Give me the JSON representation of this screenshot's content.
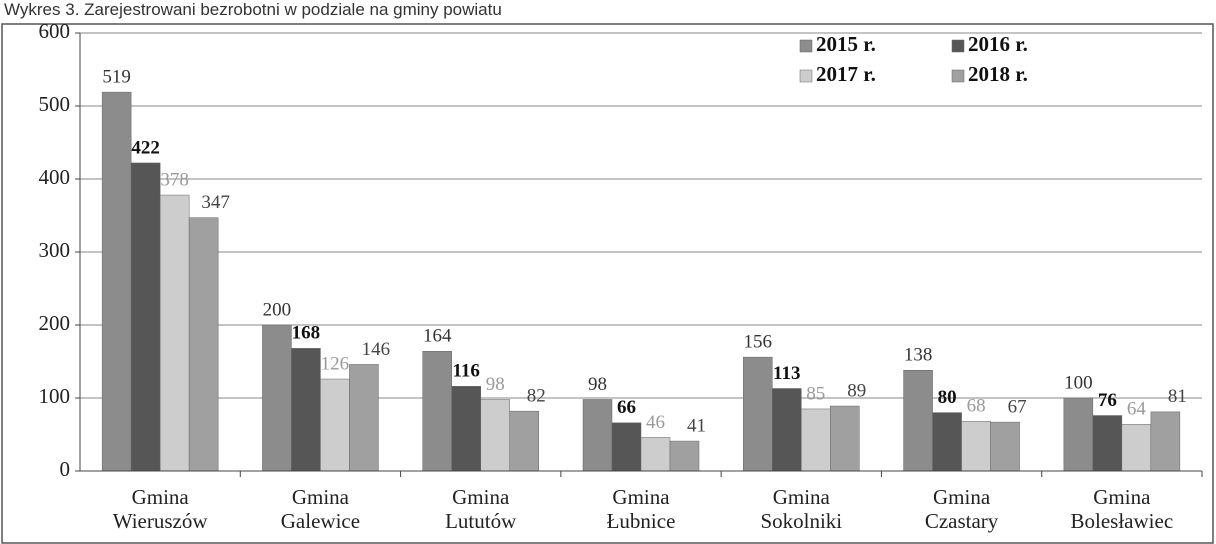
{
  "chart_data": {
    "type": "bar",
    "title": "Wykres 3. Zarejestrowani bezrobotni w podziale na gminy powiatu",
    "categories": [
      "Gmina\nWieruszów",
      "Gmina\nGalewice",
      "Gmina\nLututów",
      "Gmina\nŁubnice",
      "Gmina\nSokolniki",
      "Gmina\nCzastary",
      "Gmina\nBolesławiec"
    ],
    "series": [
      {
        "name": "2015 r.",
        "color": "#8c8c8c",
        "values": [
          519,
          200,
          164,
          98,
          156,
          138,
          100
        ]
      },
      {
        "name": "2016 r.",
        "color": "#565656",
        "values": [
          422,
          168,
          116,
          66,
          113,
          80,
          76
        ]
      },
      {
        "name": "2017 r.",
        "color": "#cdcdcd",
        "values": [
          378,
          126,
          98,
          46,
          85,
          68,
          64
        ]
      },
      {
        "name": "2018 r.",
        "color": "#a0a0a0",
        "values": [
          347,
          146,
          82,
          41,
          89,
          67,
          81
        ]
      }
    ],
    "ylim": [
      0,
      600
    ],
    "yticks": [
      0,
      100,
      200,
      300,
      400,
      500,
      600
    ],
    "grid": true,
    "legend": "top-right"
  }
}
